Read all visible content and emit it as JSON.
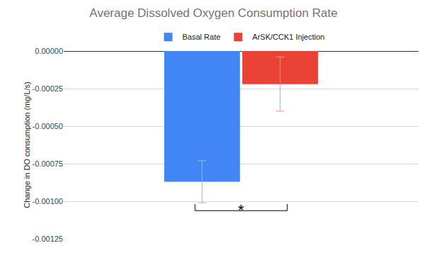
{
  "chart_data": {
    "type": "bar",
    "title": "Average Dissolved Oxygen Consumption Rate",
    "y_label": "Change in DO consumption (mg/L/s)",
    "categories": [
      null
    ],
    "series": [
      {
        "name": "Basal Rate",
        "color": "#4285f4",
        "values": [
          -0.00087
        ],
        "error": [
          0.00014
        ]
      },
      {
        "name": "ArSK/CCK1 Injection",
        "color": "#ea4335",
        "values": [
          -0.00022
        ],
        "error": [
          0.00018
        ]
      }
    ],
    "ylim": [
      -0.00125,
      0
    ],
    "yticks": [
      {
        "value": 0,
        "label": "0.00000"
      },
      {
        "value": -0.00025,
        "label": "-0.00025"
      },
      {
        "value": -0.0005,
        "label": "-0.00050"
      },
      {
        "value": -0.00075,
        "label": "-0.00075"
      },
      {
        "value": -0.001,
        "label": "-0.00100"
      },
      {
        "value": -0.00125,
        "label": "-0.00125"
      }
    ],
    "grid": true,
    "legend": "top",
    "tick_labels": "y",
    "annotations": [
      {
        "text": "*"
      }
    ]
  }
}
